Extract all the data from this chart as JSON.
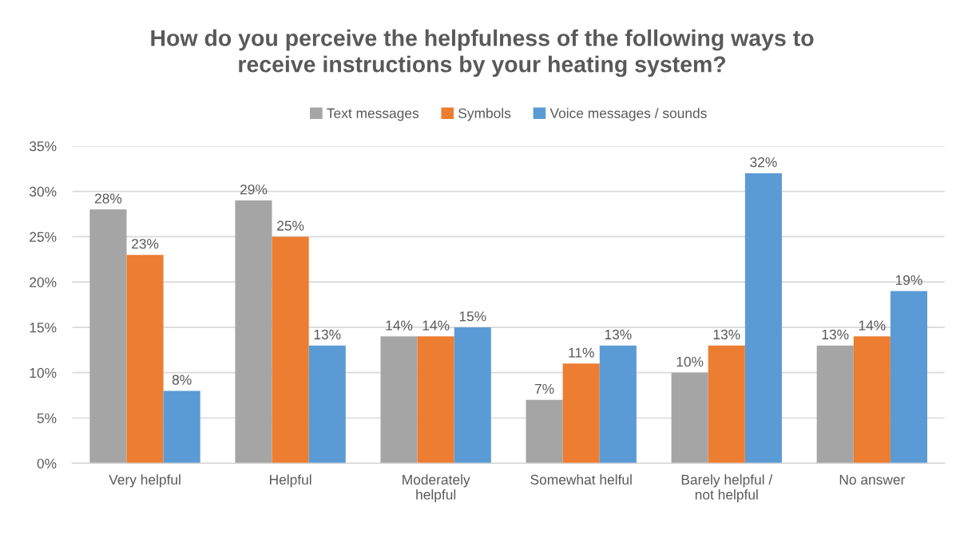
{
  "chart_data": {
    "type": "bar",
    "title": "How do you perceive the helpfulness of the following ways to\nreceive instructions by your heating system?",
    "categories": [
      "Very helpful",
      "Helpful",
      "Moderately\nhelpful",
      "Somewhat helful",
      "Barely helpful /\nnot helpful",
      "No answer"
    ],
    "series": [
      {
        "name": "Text messages",
        "color": "#a5a5a5",
        "values": [
          28,
          29,
          14,
          7,
          10,
          13
        ],
        "value_labels": [
          "28%",
          "29%",
          "14%",
          "7%",
          "10%",
          "13%"
        ]
      },
      {
        "name": "Symbols",
        "color": "#ed7d31",
        "values": [
          23,
          25,
          14,
          11,
          13,
          14
        ],
        "value_labels": [
          "23%",
          "25%",
          "14%",
          "11%",
          "13%",
          "14%"
        ]
      },
      {
        "name": "Voice messages / sounds",
        "color": "#5b9bd5",
        "values": [
          8,
          13,
          15,
          13,
          32,
          19
        ],
        "value_labels": [
          "8%",
          "13%",
          "15%",
          "13%",
          "32%",
          "19%"
        ]
      }
    ],
    "ylim": [
      0,
      35
    ],
    "yticks": [
      {
        "value": 0,
        "label": "0%"
      },
      {
        "value": 5,
        "label": "5%"
      },
      {
        "value": 10,
        "label": "10%"
      },
      {
        "value": 15,
        "label": "15%"
      },
      {
        "value": 20,
        "label": "20%"
      },
      {
        "value": 25,
        "label": "25%"
      },
      {
        "value": 30,
        "label": "30%"
      },
      {
        "value": 35,
        "label": "35%"
      }
    ],
    "grid": "y",
    "legend": "top"
  }
}
